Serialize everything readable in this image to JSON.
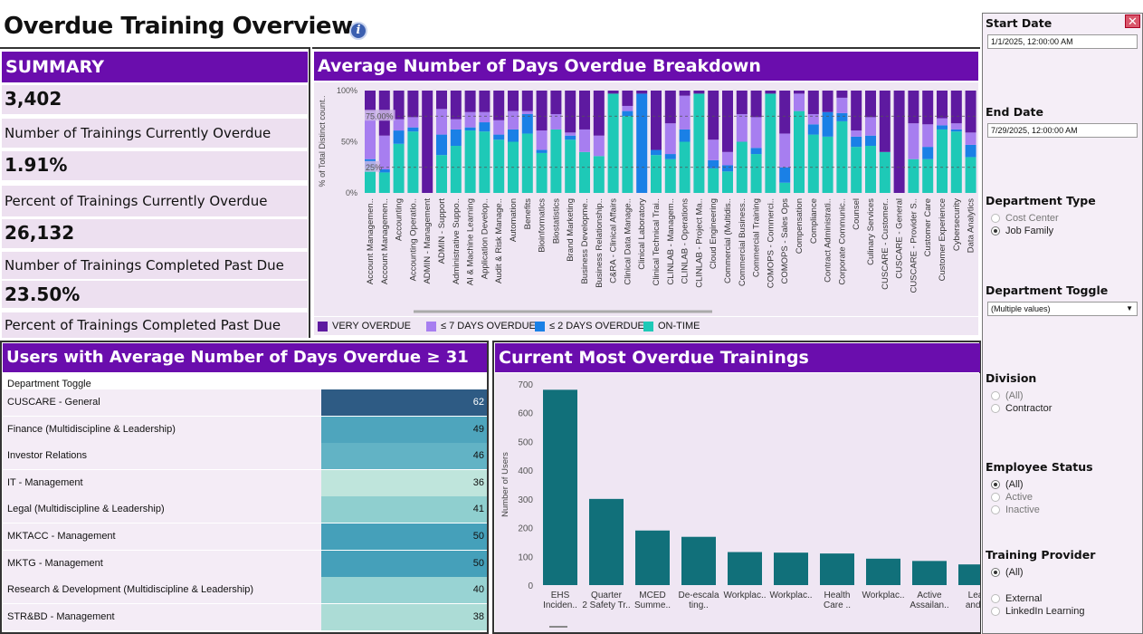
{
  "page": {
    "title": "Overdue Training Overview",
    "info_icon": "info-icon"
  },
  "summary": {
    "header": "SUMMARY",
    "items": [
      {
        "value": "3,402",
        "label": "Number of Trainings Currently Overdue"
      },
      {
        "value": "1.91%",
        "label": "Percent of Trainings Currently Overdue"
      },
      {
        "value": "26,132",
        "label": "Number of Trainings Completed Past Due"
      },
      {
        "value": "23.50%",
        "label": "Percent of Trainings Completed Past Due"
      }
    ]
  },
  "avg_breakdown": {
    "header": "Average Number of Days Overdue Breakdown",
    "ylabel": "% of Total Distinct count..",
    "yticks": [
      "100%",
      "50%",
      "0%"
    ],
    "ref_lines": [
      "75.00%",
      "25%"
    ],
    "legend": [
      {
        "label": "VERY OVERDUE",
        "color": "#5e1aa0"
      },
      {
        "label": "≤ 7 DAYS OVERDUE",
        "color": "#a77ef0"
      },
      {
        "label": "≤ 2 DAYS OVERDUE",
        "color": "#1a80e6"
      },
      {
        "label": "ON-TIME",
        "color": "#1ec9b7"
      }
    ]
  },
  "users": {
    "header": "Users with Average Number of Days Overdue ≥ 31",
    "column_header": "Department Toggle",
    "rows": [
      {
        "name": "CUSCARE - General",
        "value": "62",
        "color": "#2e5b84",
        "text_color": "#ffffff"
      },
      {
        "name": "Finance (Multidiscipline & Leadership)",
        "value": "49",
        "color": "#4ea5bd",
        "text_color": "#111111"
      },
      {
        "name": "Investor Relations",
        "value": "46",
        "color": "#62b3c5",
        "text_color": "#111111"
      },
      {
        "name": "IT - Management",
        "value": "36",
        "color": "#bfe5dc",
        "text_color": "#111111"
      },
      {
        "name": "Legal (Multidiscipline & Leadership)",
        "value": "41",
        "color": "#8fcfcf",
        "text_color": "#111111"
      },
      {
        "name": "MKTACC - Management",
        "value": "50",
        "color": "#45a0ba",
        "text_color": "#111111"
      },
      {
        "name": "MKTG - Management",
        "value": "50",
        "color": "#45a0ba",
        "text_color": "#111111"
      },
      {
        "name": "Research & Development (Multidiscipline & Leadership)",
        "value": "40",
        "color": "#98d3d3",
        "text_color": "#111111"
      },
      {
        "name": "STR&BD - Management",
        "value": "38",
        "color": "#acdcd6",
        "text_color": "#111111"
      }
    ]
  },
  "current_overdue": {
    "header": "Current Most Overdue Trainings"
  },
  "filters": {
    "start_date": {
      "title": "Start Date",
      "value": "1/1/2025, 12:00:00 AM"
    },
    "end_date": {
      "title": "End Date",
      "value": "7/29/2025, 12:00:00 AM"
    },
    "department_type": {
      "title": "Department Type",
      "options": [
        {
          "label": "Cost Center",
          "selected": false
        },
        {
          "label": "Job Family",
          "selected": true
        }
      ]
    },
    "department_toggle": {
      "title": "Department Toggle",
      "value": "(Multiple values)"
    },
    "division": {
      "title": "Division",
      "options": [
        {
          "label": "(All)",
          "selected": false
        },
        {
          "label": "Contractor",
          "selected": false
        }
      ]
    },
    "employee_status": {
      "title": "Employee Status",
      "options": [
        {
          "label": "(All)",
          "selected": true
        },
        {
          "label": "Active",
          "selected": false
        },
        {
          "label": "Inactive",
          "selected": false
        }
      ]
    },
    "training_provider": {
      "title": "Training Provider",
      "options": [
        {
          "label": "(All)",
          "selected": true
        },
        {
          "label": "External",
          "selected": false
        },
        {
          "label": "LinkedIn Learning",
          "selected": false
        }
      ]
    }
  },
  "chart_data": [
    {
      "type": "bar",
      "stacked": true,
      "title": "Average Number of Days Overdue Breakdown",
      "ylabel": "% of Total Distinct count..",
      "ylim": [
        0,
        100
      ],
      "categories": [
        "Account Managemen..",
        "Account Managemen..",
        "Accounting",
        "Accounting Operatio..",
        "ADMIN - Management",
        "ADMIN - Support",
        "Administrative Suppo..",
        "AI & Machine Learning",
        "Application Develop..",
        "Audit & Risk Manage..",
        "Automation",
        "Benefits",
        "Bioinformatics",
        "Biostatistics",
        "Brand Marketing",
        "Business Developme..",
        "Business Relationship..",
        "C&RA - Clinical Affairs",
        "Clinical Data Manage..",
        "Clinical Laboratory",
        "Clinical Technical Trai..",
        "CLINLAB - Managem..",
        "CLINLAB - Operations",
        "CLINLAB - Project Ma..",
        "Cloud Engineering",
        "Commercial (Multidis..",
        "Commercial Business..",
        "Commercial Training",
        "COMOPS - Commerci..",
        "COMOPS - Sales Ops",
        "Compensation",
        "Compliance",
        "Contract Administrati..",
        "Corporate Communic..",
        "Counsel",
        "Culinary Services",
        "CUSCARE - Customer..",
        "CUSCARE - General",
        "CUSCARE - Provider S..",
        "Customer Care",
        "Customer Experience",
        "Cybersecurity",
        "Data Analytics"
      ],
      "series": [
        {
          "name": "ON-TIME",
          "values": [
            25,
            20,
            48,
            60,
            0,
            37,
            46,
            61,
            60,
            52,
            50,
            58,
            39,
            62,
            52,
            40,
            36,
            97,
            75,
            0,
            37,
            33,
            50,
            97,
            24,
            21,
            50,
            38,
            97,
            10,
            80,
            57,
            55,
            70,
            45,
            46,
            40,
            0,
            33,
            33,
            62,
            60,
            35
          ]
        },
        {
          "name": "≤ 2 DAYS OVERDUE",
          "values": [
            8,
            3,
            13,
            4,
            0,
            20,
            16,
            3,
            9,
            5,
            12,
            19,
            3,
            0,
            4,
            0,
            0,
            0,
            5,
            97,
            5,
            5,
            12,
            0,
            8,
            6,
            0,
            6,
            0,
            15,
            0,
            10,
            24,
            8,
            10,
            10,
            0,
            0,
            0,
            12,
            4,
            2,
            12
          ]
        },
        {
          "name": "≤ 7 DAYS OVERDUE",
          "values": [
            47,
            33,
            11,
            10,
            0,
            25,
            10,
            15,
            10,
            14,
            18,
            3,
            19,
            15,
            3,
            22,
            20,
            0,
            5,
            0,
            0,
            30,
            33,
            0,
            20,
            13,
            27,
            30,
            0,
            33,
            17,
            10,
            0,
            15,
            6,
            18,
            0,
            0,
            35,
            22,
            7,
            6,
            12
          ]
        },
        {
          "name": "VERY OVERDUE",
          "values": [
            20,
            44,
            28,
            26,
            100,
            18,
            28,
            21,
            21,
            29,
            20,
            20,
            39,
            23,
            41,
            38,
            44,
            3,
            15,
            3,
            58,
            32,
            5,
            3,
            48,
            60,
            23,
            26,
            3,
            42,
            3,
            23,
            21,
            7,
            39,
            26,
            60,
            100,
            32,
            33,
            27,
            32,
            41
          ]
        }
      ]
    },
    {
      "type": "bar",
      "title": "Current Most Overdue Trainings",
      "ylabel": "Number of Users",
      "ylim": [
        0,
        700
      ],
      "yticks": [
        0,
        100,
        200,
        300,
        400,
        500,
        600,
        700
      ],
      "categories": [
        "EHS Inciden..",
        "Quarter 2 Safety Tr..",
        "MCED Summe..",
        "De-escala ting..",
        "Workplac..",
        "Workplac..",
        "Health Care ..",
        "Workplac..",
        "Active Assailan..",
        "Lea and.."
      ],
      "values": [
        680,
        300,
        190,
        168,
        115,
        113,
        110,
        92,
        84,
        72
      ]
    }
  ]
}
